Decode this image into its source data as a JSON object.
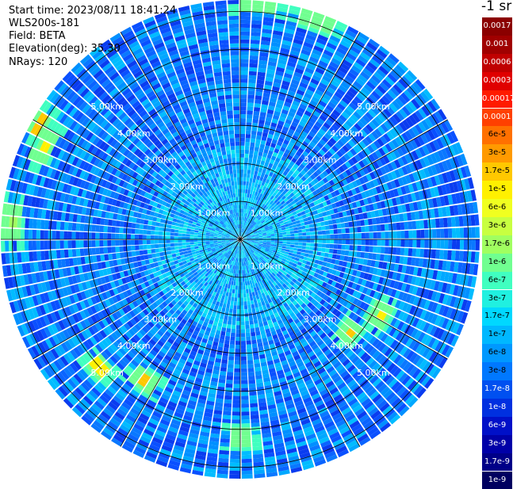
{
  "header": {
    "start_time": "Start time: 2023/08/11 18:41:24",
    "instrument": "WLS200s-181",
    "field": "Field: BETA",
    "elevation": "Elevation(deg): 35.30",
    "nrays": "NRays: 120"
  },
  "colorbar": {
    "title": "-1 sr",
    "ticks": [
      {
        "label": "0.0017",
        "color": "#8b0000",
        "text": "#ffffff"
      },
      {
        "label": "0.001",
        "color": "#a00000",
        "text": "#ffffff"
      },
      {
        "label": "0.0006",
        "color": "#c00000",
        "text": "#ffffff"
      },
      {
        "label": "0.0003",
        "color": "#e00000",
        "text": "#ffffff"
      },
      {
        "label": "0.00017",
        "color": "#ff1a00",
        "text": "#ffffff"
      },
      {
        "label": "0.0001",
        "color": "#ff4000",
        "text": "#ffffff"
      },
      {
        "label": "6e-5",
        "color": "#ff7000",
        "text": "#000000"
      },
      {
        "label": "3e-5",
        "color": "#ff9a00",
        "text": "#000000"
      },
      {
        "label": "1.7e-5",
        "color": "#ffc800",
        "text": "#000000"
      },
      {
        "label": "1e-5",
        "color": "#fff000",
        "text": "#000000"
      },
      {
        "label": "6e-6",
        "color": "#f0ff20",
        "text": "#000000"
      },
      {
        "label": "3e-6",
        "color": "#c8ff40",
        "text": "#000000"
      },
      {
        "label": "1.7e-6",
        "color": "#a0ff60",
        "text": "#000000"
      },
      {
        "label": "1e-6",
        "color": "#70ff90",
        "text": "#000000"
      },
      {
        "label": "6e-7",
        "color": "#40ffc0",
        "text": "#000000"
      },
      {
        "label": "3e-7",
        "color": "#20f0e0",
        "text": "#000000"
      },
      {
        "label": "1.7e-7",
        "color": "#00d8ff",
        "text": "#000000"
      },
      {
        "label": "1e-7",
        "color": "#00b8ff",
        "text": "#000000"
      },
      {
        "label": "6e-8",
        "color": "#0098ff",
        "text": "#000000"
      },
      {
        "label": "3e-8",
        "color": "#0078ff",
        "text": "#000000"
      },
      {
        "label": "1.7e-8",
        "color": "#0050f0",
        "text": "#ffffff"
      },
      {
        "label": "1e-8",
        "color": "#0030e0",
        "text": "#ffffff"
      },
      {
        "label": "6e-9",
        "color": "#0010c8",
        "text": "#ffffff"
      },
      {
        "label": "3e-9",
        "color": "#0000a8",
        "text": "#ffffff"
      },
      {
        "label": "1.7e-9",
        "color": "#000088",
        "text": "#ffffff"
      },
      {
        "label": "1e-9",
        "color": "#000060",
        "text": "#ffffff"
      }
    ]
  },
  "chart_data": {
    "type": "heatmap",
    "projection": "polar (PPI scan)",
    "field": "BETA",
    "elevation_deg": 35.3,
    "n_rays": 120,
    "range_rings_km": [
      1.0,
      2.0,
      3.0,
      4.0,
      5.0
    ],
    "range_ring_labels": [
      "1.00km",
      "2.00km",
      "3.00km",
      "4.00km",
      "5.00km"
    ],
    "max_range_km": 6.3,
    "spokes_deg": [
      0,
      30,
      60,
      90,
      120,
      150,
      180,
      210,
      240,
      270,
      300,
      330
    ],
    "grid": true,
    "background_level": "1e-8 to 1e-7 (blue / cyan)",
    "hotspots": [
      {
        "azimuth_deg": 295,
        "range_km": 5.7,
        "level": "1e-5"
      },
      {
        "azimuth_deg": 300,
        "range_km": 6.1,
        "level": "1.7e-5"
      },
      {
        "azimuth_deg": 5,
        "range_km": 6.2,
        "level": "1e-6"
      },
      {
        "azimuth_deg": 20,
        "range_km": 6.1,
        "level": "1e-6"
      },
      {
        "azimuth_deg": 215,
        "range_km": 4.5,
        "level": "1.7e-5"
      },
      {
        "azimuth_deg": 228,
        "range_km": 5.0,
        "level": "1e-5"
      },
      {
        "azimuth_deg": 130,
        "range_km": 3.8,
        "level": "1.7e-5"
      },
      {
        "azimuth_deg": 118,
        "range_km": 4.2,
        "level": "1e-5"
      },
      {
        "azimuth_deg": 180,
        "range_km": 5.2,
        "level": "1e-6"
      },
      {
        "azimuth_deg": 275,
        "range_km": 6.0,
        "level": "1.7e-6"
      }
    ]
  }
}
